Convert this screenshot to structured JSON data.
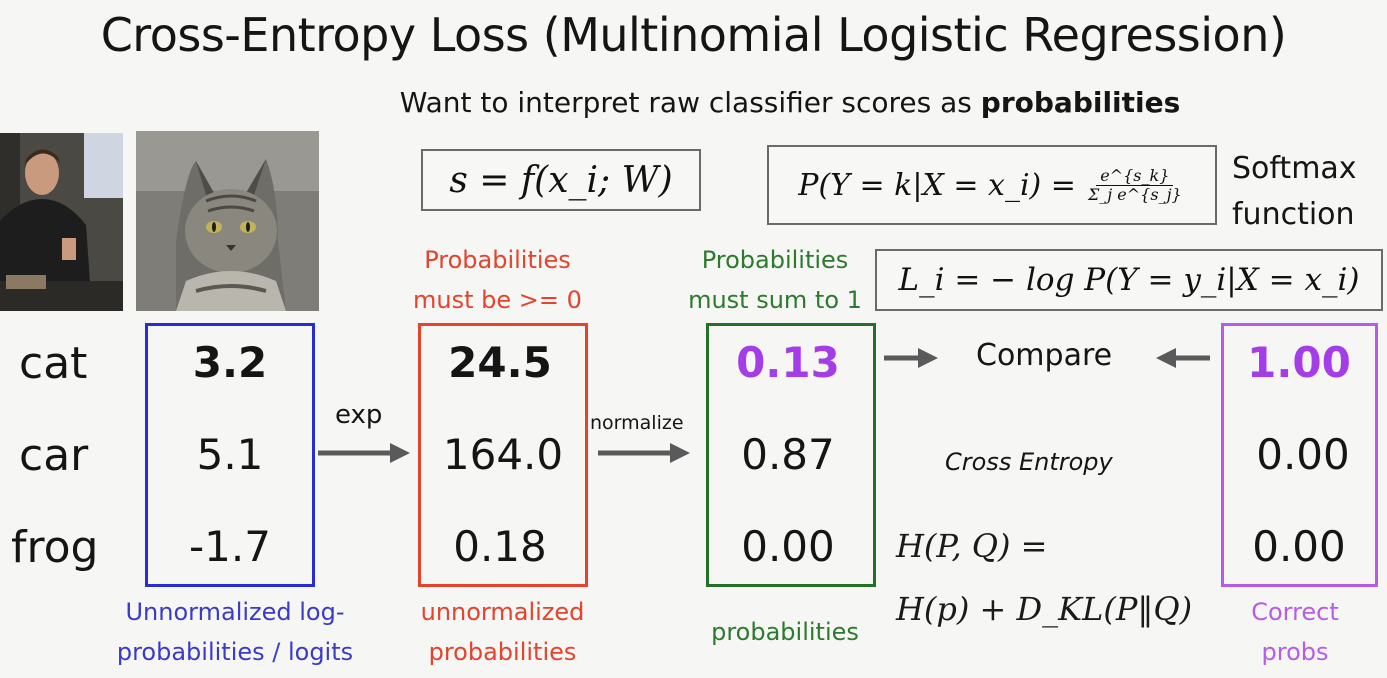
{
  "slide": {
    "title": "Cross-Entropy Loss (Multinomial Logistic Regression)",
    "subtitle_prefix": "Want to interpret raw classifier scores as ",
    "subtitle_bold": "probabilities"
  },
  "formulas": {
    "score": "s = f(x_i; W)",
    "softmax_lhs": "P(Y = k|X = x_i) =",
    "softmax_num": "e^{s_k}",
    "softmax_den": "Σ_j e^{s_j}",
    "softmax_label_1": "Softmax",
    "softmax_label_2": "function",
    "loss": "L_i = − log P(Y = y_i|X = x_i)"
  },
  "classes": [
    "cat",
    "car",
    "frog"
  ],
  "columns": {
    "logits": {
      "values": [
        "3.2",
        "5.1",
        "-1.7"
      ],
      "caption_1": "Unnormalized log-",
      "caption_2": "probabilities / logits"
    },
    "exp": {
      "header_1": "Probabilities",
      "header_2": "must be >= 0",
      "values": [
        "24.5",
        "164.0",
        "0.18"
      ],
      "caption_1": "unnormalized",
      "caption_2": "probabilities"
    },
    "probs": {
      "header_1": "Probabilities",
      "header_2": "must sum to 1",
      "values": [
        "0.13",
        "0.87",
        "0.00"
      ],
      "caption": "probabilities"
    },
    "correct": {
      "values": [
        "1.00",
        "0.00",
        "0.00"
      ],
      "caption_1": "Correct",
      "caption_2": "probs"
    }
  },
  "arrows": {
    "exp_label": "exp",
    "normalize_label": "normalize"
  },
  "compare": {
    "label": "Compare",
    "cross_entropy": "Cross Entropy",
    "h_line1": "H(P, Q) =",
    "h_line2": "H(p) + D_KL(P‖Q)"
  },
  "colors": {
    "blue": "#2b2bd3",
    "red": "#e5432d",
    "green": "#257028",
    "purple": "#b75ce6"
  }
}
